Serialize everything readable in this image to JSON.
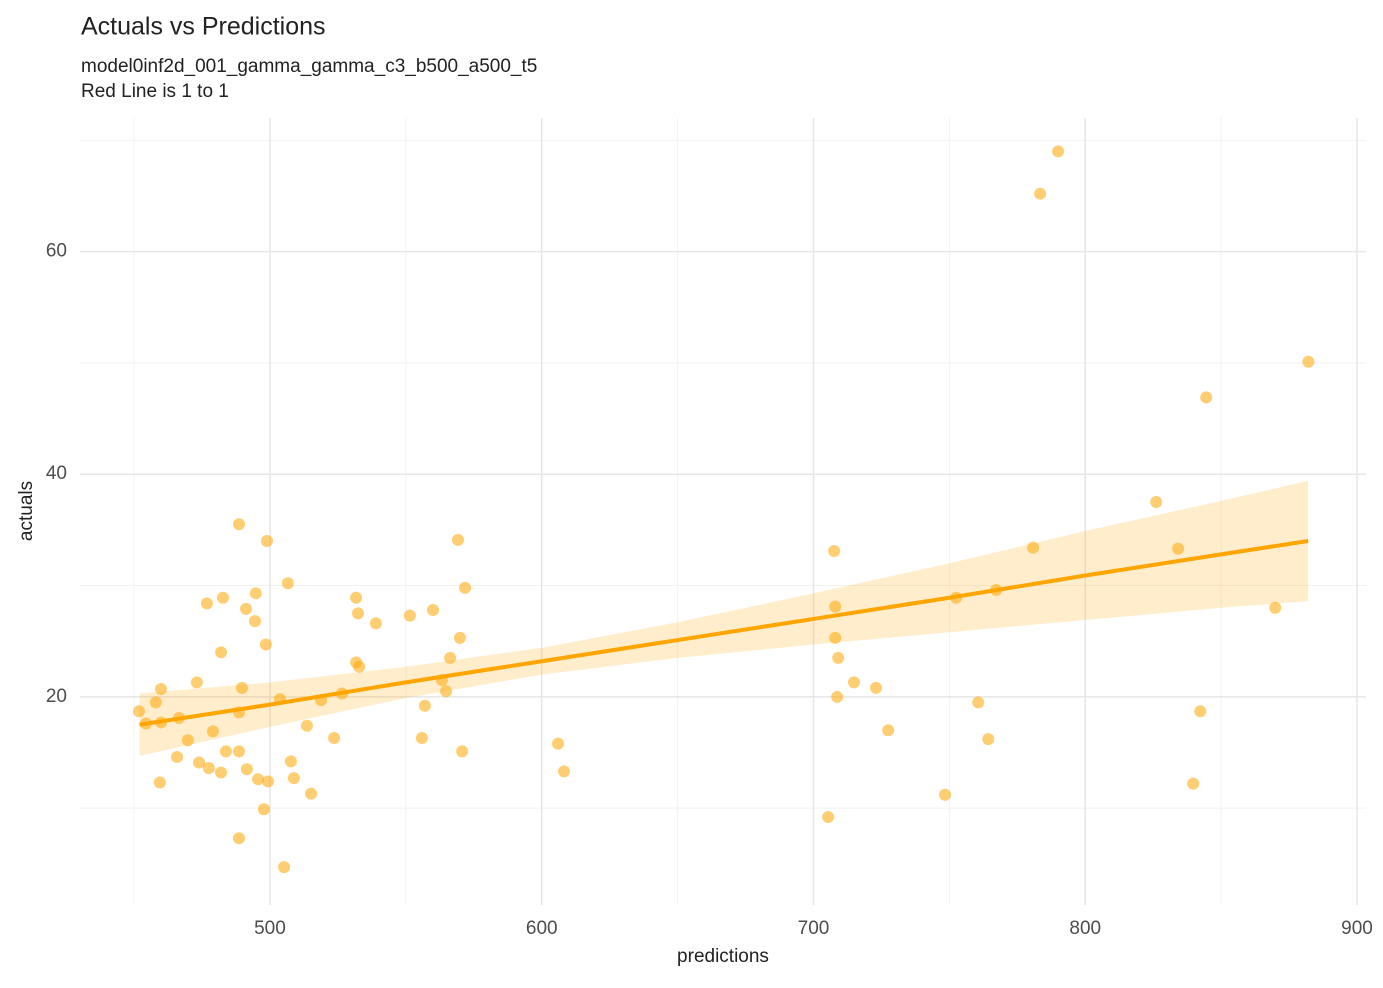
{
  "chart_data": {
    "type": "scatter",
    "title": "Actuals vs Predictions",
    "subtitle": [
      "model0inf2d_001_gamma_gamma_c3_b500_a500_t5",
      "Red Line is 1 to 1"
    ],
    "x_label": "predictions",
    "y_label": "actuals",
    "xlim": [
      430.1,
      903.3
    ],
    "ylim": [
      1.3,
      72.0
    ],
    "xticks": [
      500,
      600,
      700,
      800,
      900
    ],
    "yticks": [
      20,
      40,
      60
    ],
    "x_minor_grid": [
      450,
      550,
      650,
      750,
      850
    ],
    "y_minor_grid": [
      10,
      30,
      50,
      70
    ],
    "grid": true,
    "color": "#FFA500",
    "x": [
      451.8,
      454.4,
      458.0,
      459.9,
      459.5,
      459.9,
      465.8,
      466.5,
      469.8,
      473.1,
      473.9,
      476.8,
      477.5,
      479.0,
      482.0,
      482.0,
      482.7,
      483.8,
      488.6,
      488.6,
      488.6,
      488.6,
      489.7,
      491.2,
      491.5,
      494.5,
      494.8,
      495.6,
      497.8,
      498.5,
      498.9,
      499.3,
      503.7,
      505.2,
      506.6,
      507.7,
      508.8,
      513.6,
      515.1,
      518.8,
      523.6,
      526.5,
      531.7,
      531.7,
      532.4,
      532.8,
      539.0,
      551.5,
      555.9,
      557.0,
      560.0,
      563.3,
      564.8,
      566.3,
      569.2,
      569.9,
      570.7,
      571.8,
      606.0,
      608.2,
      705.4,
      707.6,
      708.0,
      708.0,
      708.7,
      709.1,
      714.9,
      723.0,
      727.5,
      748.4,
      752.5,
      760.6,
      764.3,
      767.2,
      780.8,
      783.4,
      790.0,
      826.1,
      834.2,
      839.7,
      842.3,
      844.5,
      869.9,
      882.1
    ],
    "values": [
      18.7,
      17.6,
      19.5,
      20.7,
      12.3,
      17.7,
      14.6,
      18.1,
      16.1,
      21.3,
      14.1,
      28.4,
      13.6,
      16.9,
      13.2,
      24.0,
      28.9,
      15.1,
      35.5,
      15.1,
      7.3,
      18.6,
      20.8,
      27.9,
      13.5,
      26.8,
      29.3,
      12.6,
      9.9,
      24.7,
      34.0,
      12.4,
      19.8,
      4.7,
      30.2,
      14.2,
      12.7,
      17.4,
      11.3,
      19.7,
      16.3,
      20.3,
      23.1,
      28.9,
      27.5,
      22.7,
      26.6,
      27.3,
      16.3,
      19.2,
      27.8,
      21.5,
      20.5,
      23.5,
      34.1,
      25.3,
      15.1,
      29.8,
      15.8,
      13.3,
      9.2,
      33.1,
      28.1,
      25.3,
      20.0,
      23.5,
      21.3,
      20.8,
      17.0,
      11.2,
      28.9,
      19.5,
      16.2,
      29.6,
      33.4,
      65.2,
      69.0,
      37.5,
      33.3,
      12.2,
      18.7,
      46.9,
      28.0,
      50.1
    ],
    "smooth": {
      "x": [
        452,
        500,
        550,
        600,
        650,
        700,
        750,
        800,
        850,
        882
      ],
      "y": [
        17.5,
        19.3,
        21.3,
        23.2,
        25.1,
        27.0,
        28.9,
        30.9,
        32.8,
        34.0
      ],
      "lower": [
        14.7,
        17.3,
        19.9,
        22.0,
        23.5,
        24.7,
        25.8,
        26.9,
        28.0,
        28.6
      ],
      "upper": [
        20.3,
        21.3,
        22.7,
        24.4,
        26.7,
        29.3,
        32.0,
        34.9,
        37.6,
        39.4
      ]
    }
  }
}
